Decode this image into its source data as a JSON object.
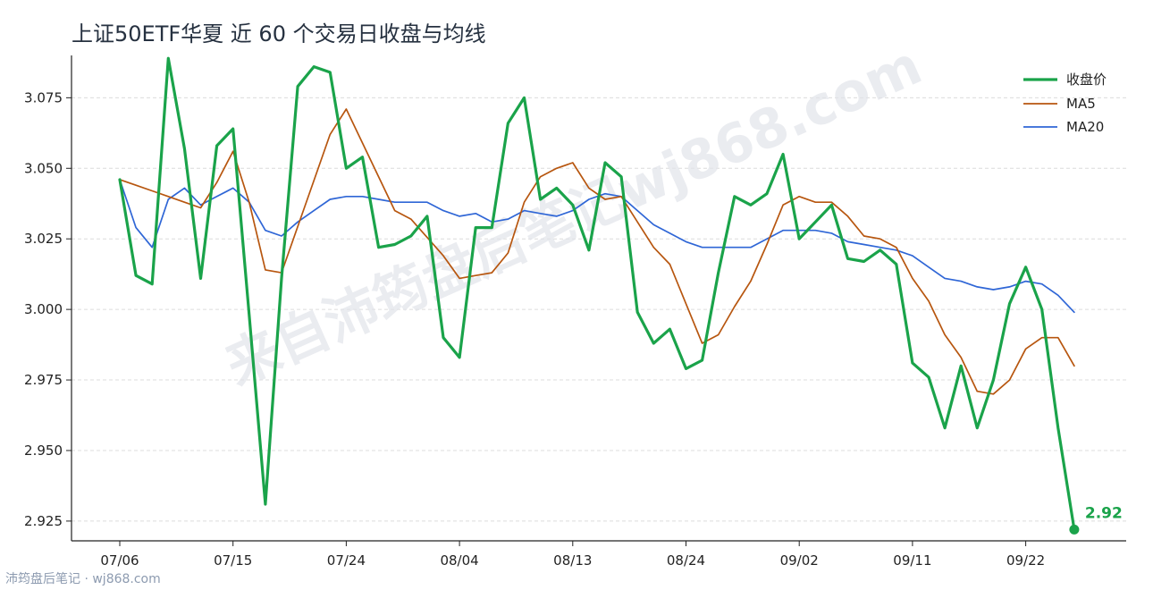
{
  "title": "上证50ETF华夏 近 60 个交易日收盘与均线",
  "footer": "沛筠盘后笔记 · wj868.com",
  "watermark": "来自沛筠盘后笔记wj868.com",
  "colors": {
    "close": "#1aa34a",
    "ma5": "#b7560f",
    "ma20": "#2f66d6",
    "grid": "#dcdcdc",
    "axis": "#222222",
    "watermark": "#e2e4ea"
  },
  "chart_data": {
    "type": "line",
    "title": "上证50ETF华夏 近 60 个交易日收盘与均线",
    "x_tick_labels": [
      "07/06",
      "07/15",
      "07/24",
      "08/04",
      "08/13",
      "08/24",
      "09/02",
      "09/11",
      "09/22"
    ],
    "x_tick_index": [
      0,
      7,
      14,
      21,
      28,
      35,
      42,
      49,
      56
    ],
    "y_tick_labels": [
      "2.925",
      "2.950",
      "2.975",
      "3.000",
      "3.025",
      "3.050",
      "3.075"
    ],
    "ylim": [
      2.918,
      3.09
    ],
    "grid": "horizontal dashed",
    "legend_position": "top-right",
    "series": [
      {
        "name": "收盘价",
        "values": [
          3.046,
          3.012,
          3.009,
          3.089,
          3.057,
          3.011,
          3.058,
          3.064,
          2.998,
          2.931,
          3.011,
          3.079,
          3.086,
          3.084,
          3.05,
          3.054,
          3.022,
          3.023,
          3.026,
          3.033,
          2.99,
          2.983,
          3.029,
          3.029,
          3.066,
          3.075,
          3.039,
          3.043,
          3.037,
          3.021,
          3.052,
          3.047,
          2.999,
          2.988,
          2.993,
          2.979,
          2.982,
          3.013,
          3.04,
          3.037,
          3.041,
          3.055,
          3.025,
          3.031,
          3.037,
          3.018,
          3.017,
          3.021,
          3.016,
          2.981,
          2.976,
          2.958,
          2.98,
          2.958,
          2.975,
          3.002,
          3.015,
          3.0,
          2.958,
          2.922
        ]
      },
      {
        "name": "MA5",
        "values": [
          3.046,
          null,
          null,
          null,
          null,
          3.036,
          3.045,
          3.056,
          3.038,
          3.014,
          3.013,
          null,
          null,
          3.062,
          3.071,
          3.059,
          3.047,
          3.035,
          3.032,
          null,
          3.019,
          3.011,
          3.012,
          3.013,
          3.02,
          3.038,
          3.047,
          3.05,
          3.052,
          3.043,
          3.039,
          3.04,
          3.031,
          3.022,
          3.016,
          3.002,
          2.988,
          2.991,
          3.001,
          3.01,
          3.023,
          3.037,
          3.04,
          3.038,
          3.038,
          3.033,
          3.026,
          3.025,
          3.022,
          3.011,
          3.003,
          2.991,
          2.983,
          2.971,
          2.97,
          2.975,
          2.986,
          2.99,
          2.99,
          2.98
        ]
      },
      {
        "name": "MA20",
        "values": [
          3.046,
          3.029,
          3.022,
          3.039,
          3.043,
          3.037,
          3.04,
          3.043,
          3.038,
          3.028,
          3.026,
          3.031,
          3.035,
          3.039,
          3.04,
          3.04,
          3.039,
          3.038,
          3.038,
          3.038,
          3.035,
          3.033,
          3.034,
          3.031,
          3.032,
          3.035,
          3.034,
          3.033,
          3.035,
          3.039,
          3.041,
          3.04,
          3.035,
          3.03,
          3.027,
          3.024,
          3.022,
          3.022,
          3.022,
          3.022,
          3.025,
          3.028,
          3.028,
          3.028,
          3.027,
          3.024,
          3.023,
          3.022,
          3.021,
          3.019,
          3.015,
          3.011,
          3.01,
          3.008,
          3.007,
          3.008,
          3.01,
          3.009,
          3.005,
          2.999
        ]
      }
    ],
    "annotations": [
      {
        "series": "收盘价",
        "index": 59,
        "text": "2.92"
      }
    ]
  }
}
